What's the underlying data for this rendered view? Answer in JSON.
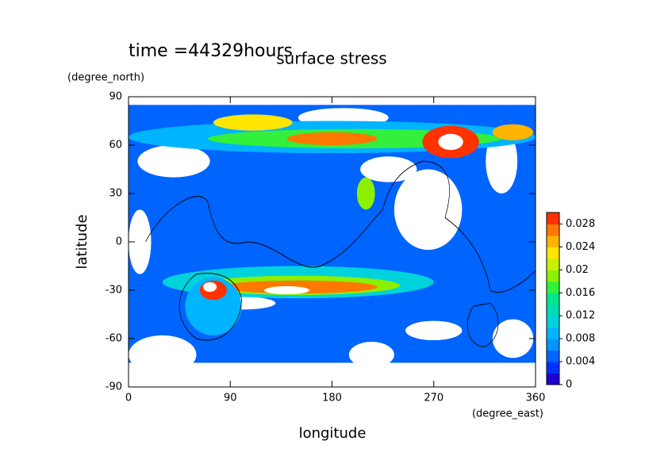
{
  "chart_data": {
    "type": "contour",
    "title": "surface stress",
    "annotation": "time =44329hours",
    "x_label": "longitude",
    "x_units": "(degree_east)",
    "y_label": "latitude",
    "y_units": "(degree_north)",
    "xlim": [
      0,
      360
    ],
    "xticks": [
      0,
      90,
      180,
      270,
      360
    ],
    "ylim": [
      -90,
      90
    ],
    "yticks": [
      -90,
      -60,
      -30,
      0,
      30,
      60,
      90
    ],
    "colorbar": {
      "lim": [
        0,
        0.03
      ],
      "ticks": [
        0,
        0.004,
        0.008,
        0.012,
        0.016,
        0.02,
        0.024,
        0.028
      ],
      "colors": [
        "#1e00d2",
        "#0032ff",
        "#0064ff",
        "#0096ff",
        "#00b4ff",
        "#00d2dc",
        "#00dcb4",
        "#00e68c",
        "#32f03c",
        "#8cf000",
        "#c8f000",
        "#ffe600",
        "#ffb400",
        "#ff7800",
        "#ff3200"
      ]
    }
  }
}
